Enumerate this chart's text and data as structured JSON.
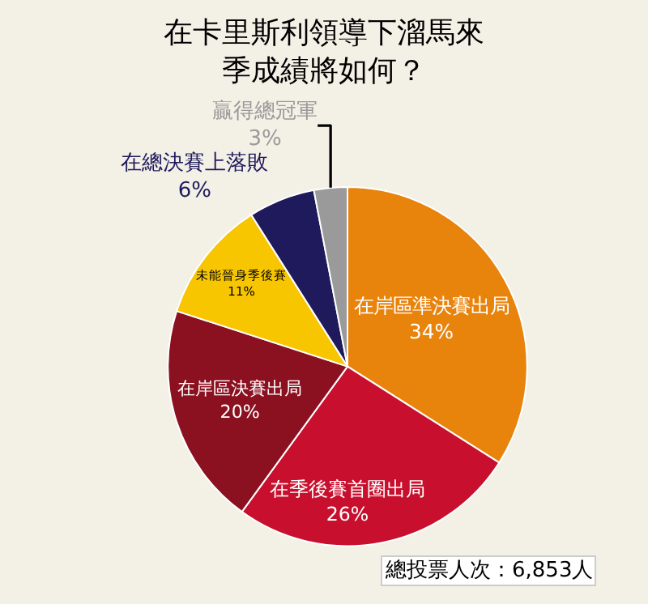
{
  "chart_data": {
    "type": "pie",
    "title": "在卡里斯利領導下溜馬來季成績將如何？",
    "categories": [
      "在岸區準決賽出局",
      "在季後賽首圈出局",
      "在岸區決賽出局",
      "未能晉身季後賽",
      "在總決賽上落敗",
      "贏得總冠軍"
    ],
    "values": [
      34,
      26,
      20,
      11,
      6,
      3
    ],
    "value_labels": [
      "34%",
      "26%",
      "20%",
      "11%",
      "6%",
      "3%"
    ],
    "colors": [
      "#e8830c",
      "#c8102e",
      "#8b1020",
      "#f7c600",
      "#1f1a5c",
      "#9a9a9a"
    ],
    "annotations": [
      "總投票人次：6,853人"
    ],
    "legend": false
  }
}
